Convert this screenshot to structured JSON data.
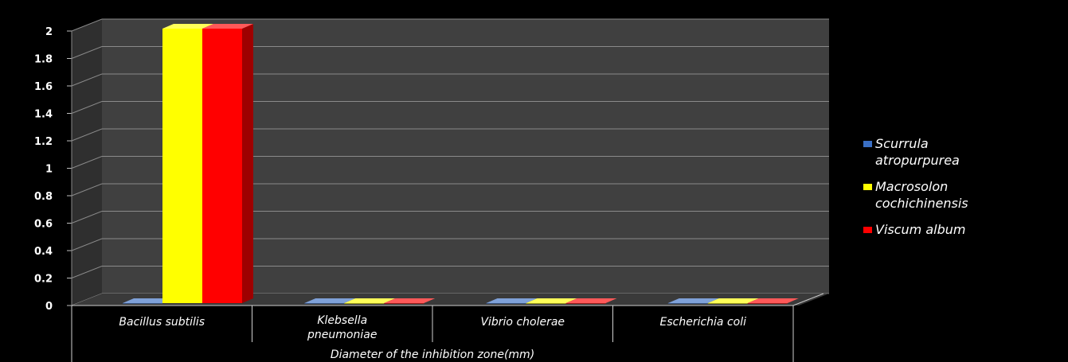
{
  "chart_data": {
    "type": "bar",
    "xlabel": "Diameter of the inhibition zone(mm)",
    "ylabel": "",
    "ylim": [
      0,
      2
    ],
    "yticks": [
      "0",
      "0.2",
      "0.4",
      "0.6",
      "0.8",
      "1",
      "1.2",
      "1.4",
      "1.6",
      "1.8",
      "2"
    ],
    "categories": [
      [
        "Bacillus subtilis"
      ],
      [
        "Klebsella",
        "pneumoniae"
      ],
      [
        "Vibrio cholerae"
      ],
      [
        "Escherichia coli"
      ]
    ],
    "series": [
      {
        "name_lines": [
          "Scurrula",
          "atropurpurea"
        ],
        "color": "#3a6fc4",
        "values": [
          0,
          0,
          0,
          0
        ]
      },
      {
        "name_lines": [
          "Macrosolon",
          "cochichinensis"
        ],
        "color": "#ffff00",
        "values": [
          2,
          0,
          0,
          0
        ]
      },
      {
        "name_lines": [
          "Viscum album"
        ],
        "color": "#ff0000",
        "values": [
          2,
          0,
          0,
          0
        ]
      }
    ],
    "grid": true,
    "legend_position": "right",
    "style": "3d-clustered-column",
    "background": "#000000",
    "plot_wall": "#404040"
  }
}
